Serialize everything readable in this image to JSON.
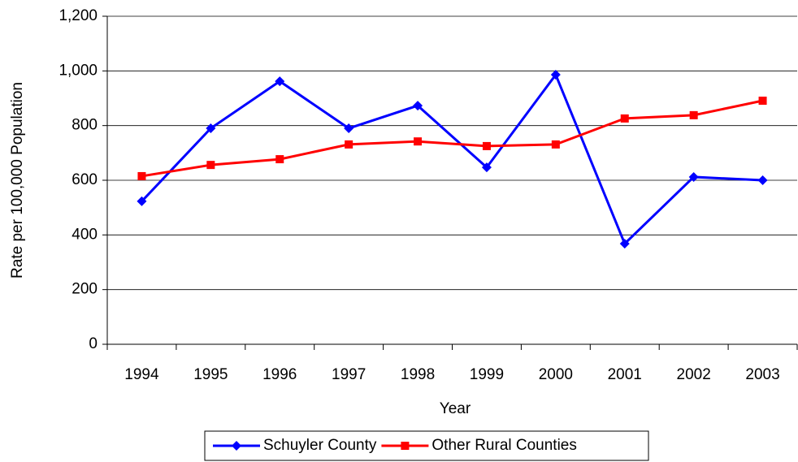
{
  "chart_data": {
    "type": "line",
    "x_label": "Year",
    "y_label": "Rate per 100,000 Population",
    "categories": [
      "1994",
      "1995",
      "1996",
      "1997",
      "1998",
      "1999",
      "2000",
      "2001",
      "2002",
      "2003"
    ],
    "series": [
      {
        "name": "Schuyler County",
        "color": "#0000ff",
        "marker": "diamond",
        "values": [
          523,
          790,
          962,
          790,
          873,
          647,
          986,
          368,
          612,
          600
        ]
      },
      {
        "name": "Other Rural Counties",
        "color": "#ff0000",
        "marker": "square",
        "values": [
          615,
          656,
          677,
          731,
          742,
          725,
          731,
          826,
          838,
          891
        ]
      }
    ],
    "ylim": [
      0,
      1200
    ],
    "yticks": [
      0,
      200,
      400,
      600,
      800,
      {
        "value": 1000,
        "label": "1,000"
      },
      {
        "value": 1200,
        "label": "1,200"
      }
    ],
    "grid": true,
    "legend": "bottom"
  }
}
